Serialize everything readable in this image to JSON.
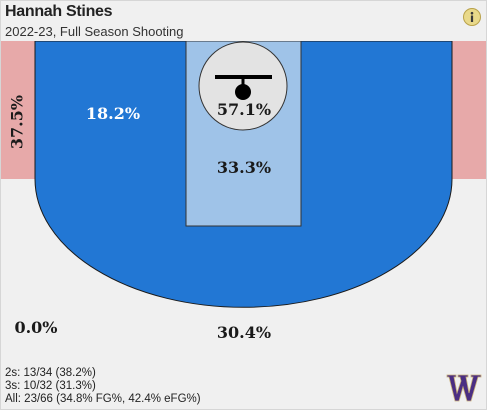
{
  "header": {
    "player_name": "Hannah Stines",
    "subtitle": "2022-23, Full Season Shooting",
    "info_icon": "info-icon"
  },
  "zones": {
    "left_corner_three": "37.5%",
    "left_wing_midrange": "18.2%",
    "at_rim": "57.1%",
    "paint": "33.3%",
    "left_wing_three": "0.0%",
    "top_of_key_three": "30.4%"
  },
  "summary": {
    "twos": "2s: 13/34 (38.2%)",
    "threes": "3s: 10/32 (31.3%)",
    "all": "All: 23/66 (34.8% FG%, 42.4% eFG%)"
  },
  "logo": {
    "name": "team-logo-w",
    "text": "W",
    "color": "#4b2e83"
  },
  "colors": {
    "hot_blue": "#2277d4",
    "paint_blue": "#9fc3e8",
    "rim_gray": "#e3e3e3",
    "corner_pink": "#e7a9a9",
    "three_area": "#f0f0f0"
  }
}
